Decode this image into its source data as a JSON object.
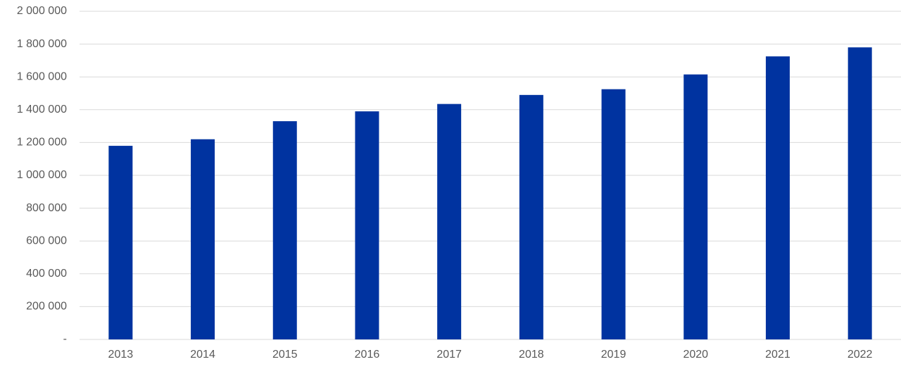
{
  "chart_data": {
    "type": "bar",
    "categories": [
      "2013",
      "2014",
      "2015",
      "2016",
      "2017",
      "2018",
      "2019",
      "2020",
      "2021",
      "2022"
    ],
    "values": [
      1180000,
      1220000,
      1330000,
      1390000,
      1435000,
      1490000,
      1525000,
      1615000,
      1725000,
      1780000
    ],
    "color": "#0033a0",
    "ylim": [
      0,
      2000000
    ],
    "yticks": [
      {
        "value": 0,
        "label": "-"
      },
      {
        "value": 200000,
        "label": "200 000"
      },
      {
        "value": 400000,
        "label": "400 000"
      },
      {
        "value": 600000,
        "label": "600 000"
      },
      {
        "value": 800000,
        "label": "800 000"
      },
      {
        "value": 1000000,
        "label": "1 000 000"
      },
      {
        "value": 1200000,
        "label": "1 200 000"
      },
      {
        "value": 1400000,
        "label": "1 400 000"
      },
      {
        "value": 1600000,
        "label": "1 600 000"
      },
      {
        "value": 1800000,
        "label": "1 800 000"
      },
      {
        "value": 2000000,
        "label": "2 000 000"
      }
    ],
    "grid": true
  }
}
